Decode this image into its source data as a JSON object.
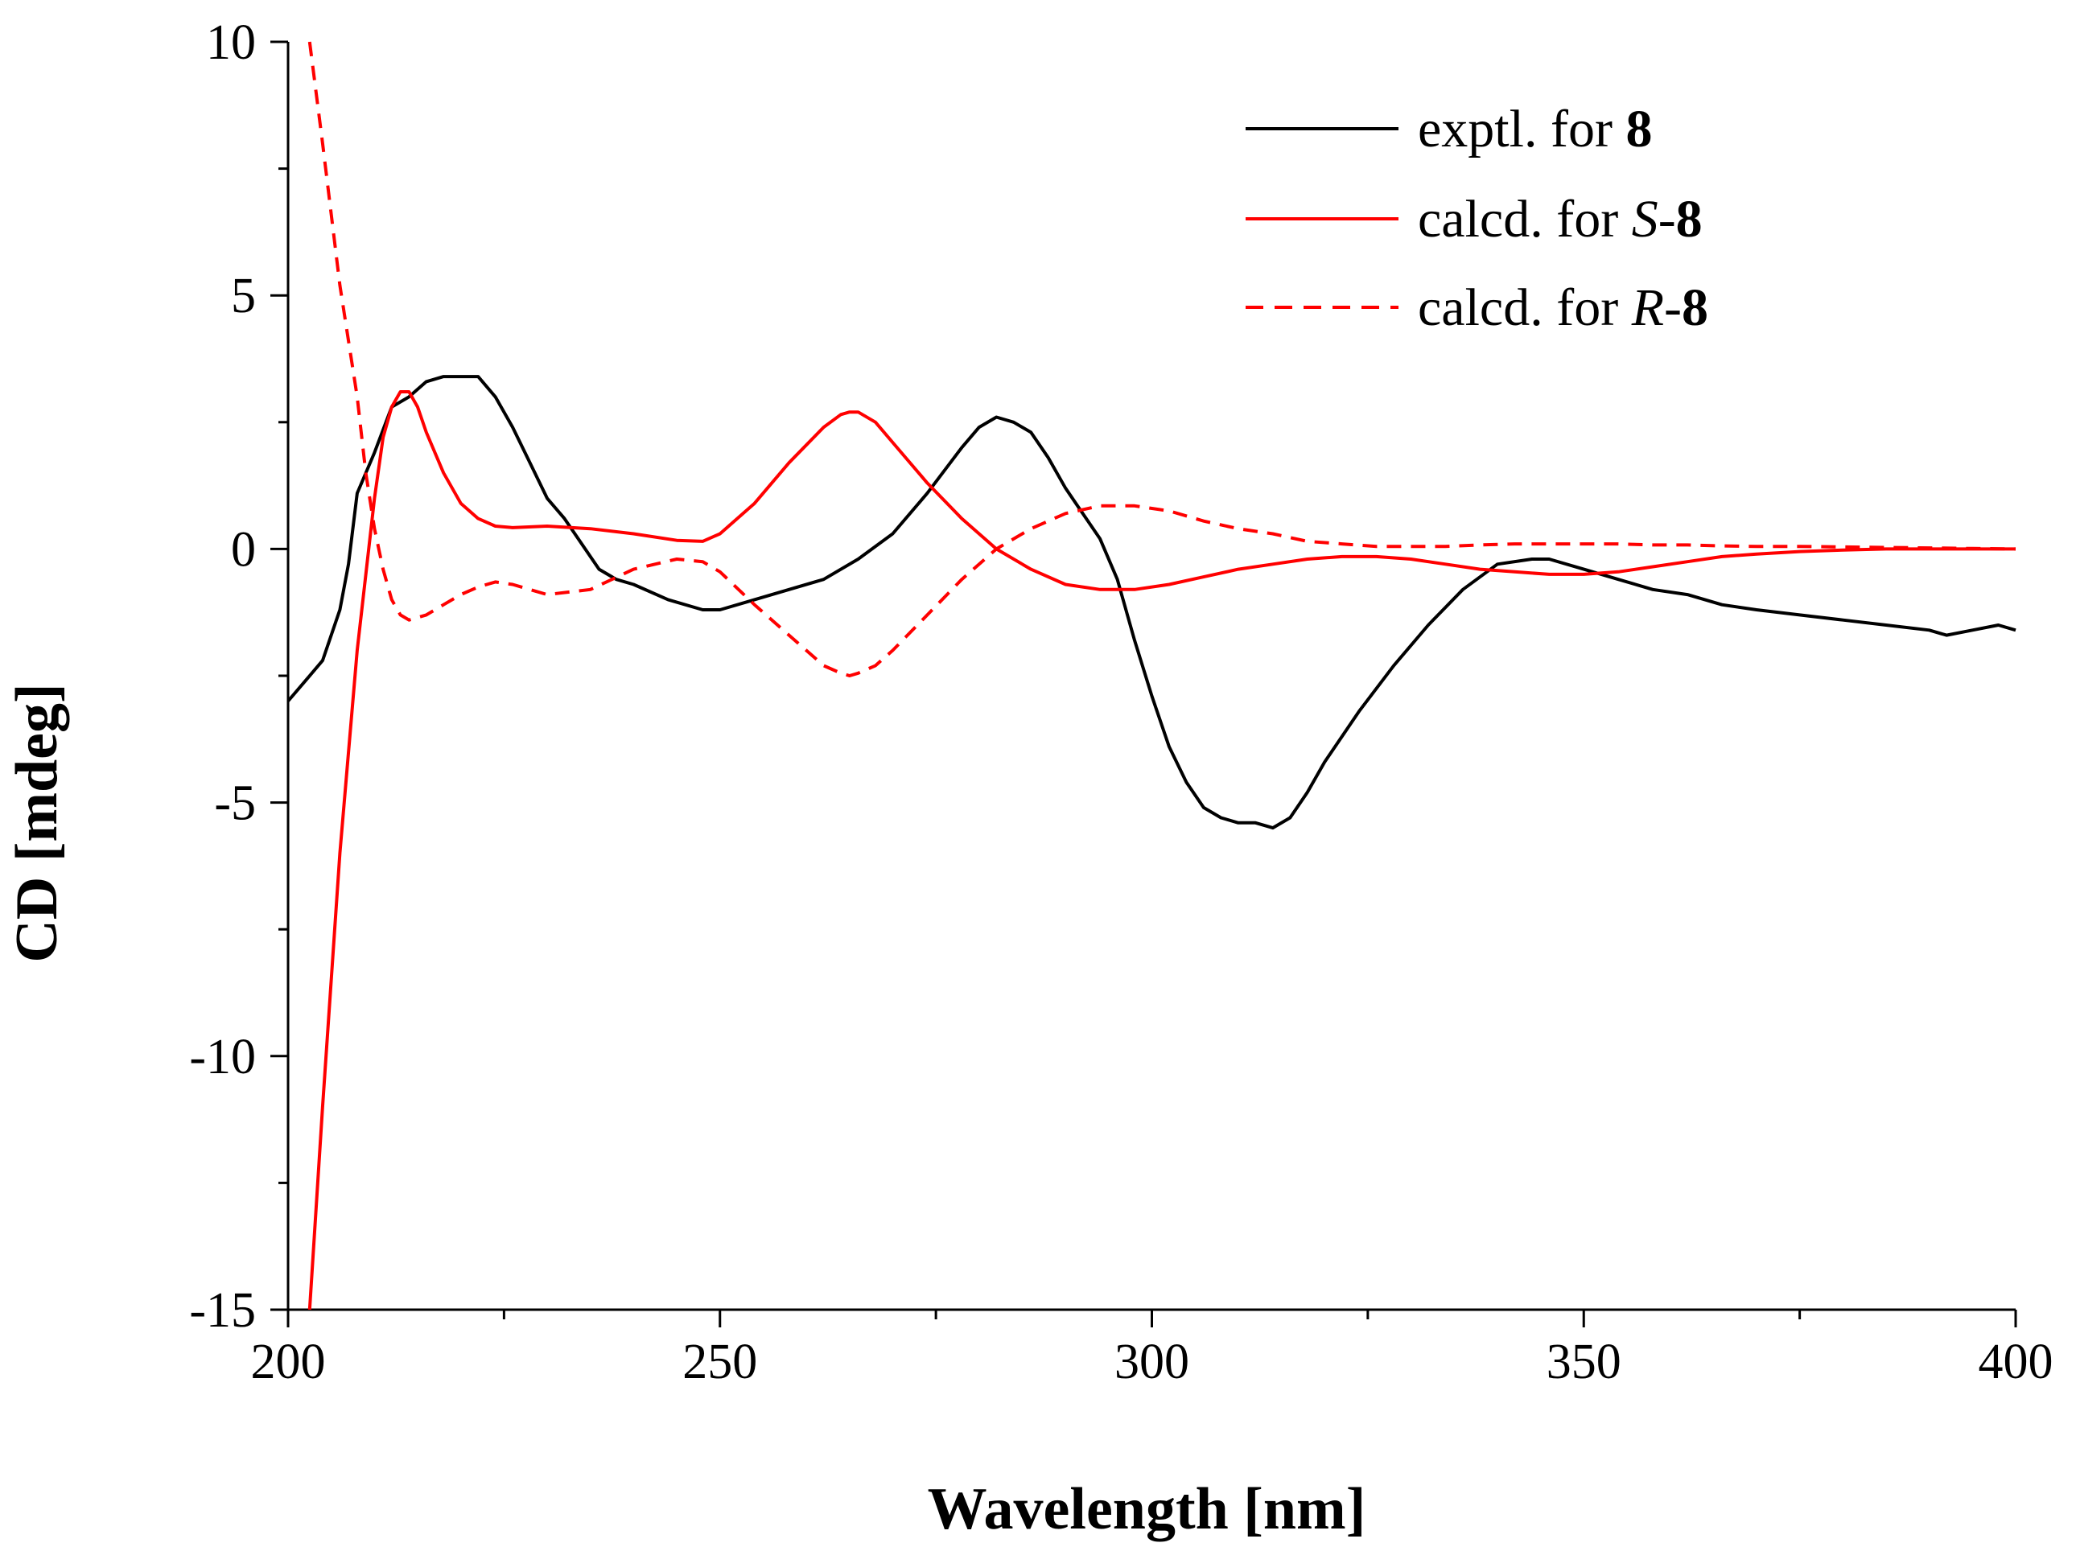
{
  "chart_data": {
    "type": "line",
    "title": "",
    "xlabel": "Wavelength [nm]",
    "ylabel": "CD [mdeg]",
    "xlim": [
      200,
      400
    ],
    "ylim": [
      -15,
      10
    ],
    "x_ticks": [
      200,
      250,
      300,
      350,
      400
    ],
    "y_ticks": [
      -15,
      -10,
      -5,
      0,
      5,
      10
    ],
    "x_tick_labels": [
      "200",
      "250",
      "300",
      "350",
      "400"
    ],
    "y_tick_labels": [
      "-15",
      "-10",
      "-5",
      "0",
      "5",
      "10"
    ],
    "grid": false,
    "legend_position": "top-right",
    "series": [
      {
        "name": "exptl. for 8",
        "legend": {
          "prefix": "exptl. for ",
          "italic": "",
          "sep": "",
          "bold": "8"
        },
        "color": "#000000",
        "style": "solid",
        "x": [
          200,
          202,
          204,
          206,
          207,
          208,
          210,
          212,
          214,
          216,
          218,
          220,
          222,
          224,
          226,
          228,
          230,
          232,
          234,
          236,
          238,
          240,
          244,
          248,
          250,
          254,
          258,
          262,
          266,
          270,
          274,
          278,
          280,
          282,
          284,
          286,
          288,
          290,
          292,
          294,
          296,
          298,
          300,
          302,
          304,
          306,
          308,
          310,
          312,
          314,
          316,
          318,
          320,
          324,
          328,
          332,
          336,
          340,
          344,
          346,
          350,
          354,
          358,
          362,
          366,
          370,
          375,
          380,
          385,
          390,
          392,
          395,
          398,
          400
        ],
        "y": [
          -3.0,
          -2.6,
          -2.2,
          -1.2,
          -0.3,
          1.1,
          1.9,
          2.8,
          3.0,
          3.3,
          3.4,
          3.4,
          3.4,
          3.0,
          2.4,
          1.7,
          1.0,
          0.6,
          0.1,
          -0.4,
          -0.6,
          -0.7,
          -1.0,
          -1.2,
          -1.2,
          -1.0,
          -0.8,
          -0.6,
          -0.2,
          0.3,
          1.1,
          2.0,
          2.4,
          2.6,
          2.5,
          2.3,
          1.8,
          1.2,
          0.7,
          0.2,
          -0.6,
          -1.8,
          -2.9,
          -3.9,
          -4.6,
          -5.1,
          -5.3,
          -5.4,
          -5.4,
          -5.5,
          -5.3,
          -4.8,
          -4.2,
          -3.2,
          -2.3,
          -1.5,
          -0.8,
          -0.3,
          -0.2,
          -0.2,
          -0.4,
          -0.6,
          -0.8,
          -0.9,
          -1.1,
          -1.2,
          -1.3,
          -1.4,
          -1.5,
          -1.6,
          -1.7,
          -1.6,
          -1.5,
          -1.6
        ]
      },
      {
        "name": "calcd. for S-8",
        "legend": {
          "prefix": "calcd. for ",
          "italic": "S",
          "sep": "-",
          "bold": "8"
        },
        "color": "#ff0000",
        "style": "solid",
        "x": [
          202.5,
          204,
          206,
          208,
          210,
          211,
          212,
          213,
          214,
          215,
          216,
          218,
          220,
          222,
          224,
          226,
          230,
          235,
          240,
          245,
          248,
          250,
          254,
          258,
          262,
          264,
          265,
          266,
          268,
          270,
          274,
          278,
          282,
          286,
          290,
          294,
          298,
          302,
          306,
          310,
          314,
          318,
          322,
          326,
          330,
          334,
          338,
          342,
          346,
          350,
          354,
          358,
          362,
          366,
          370,
          375,
          380,
          385,
          390,
          395,
          400
        ],
        "y": [
          -15.0,
          -11.0,
          -6.0,
          -2.0,
          1.0,
          2.2,
          2.8,
          3.1,
          3.1,
          2.8,
          2.3,
          1.5,
          0.9,
          0.6,
          0.45,
          0.42,
          0.45,
          0.4,
          0.3,
          0.17,
          0.15,
          0.3,
          0.9,
          1.7,
          2.4,
          2.65,
          2.7,
          2.7,
          2.5,
          2.1,
          1.3,
          0.6,
          0.0,
          -0.4,
          -0.7,
          -0.8,
          -0.8,
          -0.7,
          -0.55,
          -0.4,
          -0.3,
          -0.2,
          -0.15,
          -0.15,
          -0.2,
          -0.3,
          -0.4,
          -0.45,
          -0.5,
          -0.5,
          -0.45,
          -0.35,
          -0.25,
          -0.15,
          -0.1,
          -0.05,
          -0.02,
          0.0,
          0.0,
          0.0,
          0.0
        ]
      },
      {
        "name": "calcd. for R-8",
        "legend": {
          "prefix": "calcd. for ",
          "italic": "R",
          "sep": "-",
          "bold": "8"
        },
        "color": "#ff0000",
        "style": "dashed",
        "x": [
          202.5,
          204,
          206,
          208,
          209,
          210,
          211,
          212,
          213,
          214,
          216,
          218,
          220,
          222,
          224,
          226,
          230,
          235,
          240,
          245,
          248,
          250,
          254,
          258,
          262,
          264,
          265,
          266,
          268,
          270,
          274,
          278,
          282,
          286,
          290,
          294,
          298,
          302,
          306,
          310,
          314,
          318,
          322,
          326,
          330,
          334,
          338,
          342,
          346,
          350,
          354,
          358,
          362,
          366,
          370,
          375,
          380,
          385,
          390,
          395,
          400
        ],
        "y": [
          10.0,
          8.0,
          5.2,
          3.0,
          1.5,
          0.4,
          -0.4,
          -1.0,
          -1.3,
          -1.4,
          -1.3,
          -1.1,
          -0.9,
          -0.75,
          -0.65,
          -0.7,
          -0.9,
          -0.8,
          -0.4,
          -0.2,
          -0.25,
          -0.45,
          -1.1,
          -1.7,
          -2.3,
          -2.45,
          -2.5,
          -2.45,
          -2.3,
          -2.0,
          -1.3,
          -0.6,
          0.0,
          0.4,
          0.7,
          0.85,
          0.85,
          0.75,
          0.55,
          0.4,
          0.3,
          0.15,
          0.1,
          0.05,
          0.05,
          0.05,
          0.08,
          0.1,
          0.1,
          0.1,
          0.1,
          0.08,
          0.08,
          0.06,
          0.05,
          0.05,
          0.04,
          0.03,
          0.02,
          0.01,
          0.0
        ]
      }
    ]
  }
}
